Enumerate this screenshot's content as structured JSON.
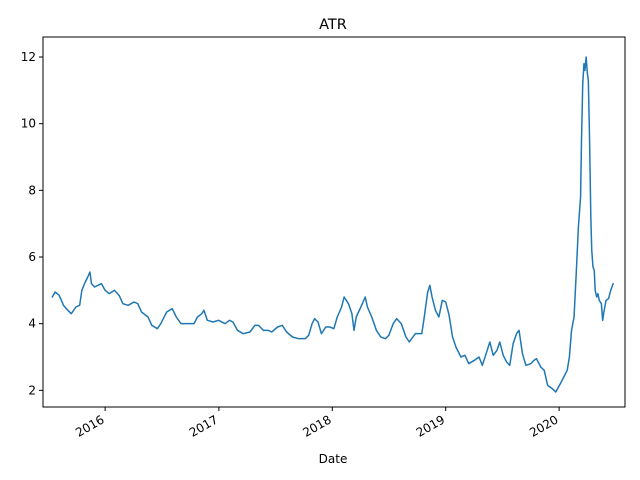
{
  "chart_data": {
    "type": "line",
    "title": "ATR",
    "xlabel": "Date",
    "ylabel": "",
    "x_start": "2015-07-15",
    "x_end": "2020-07-01",
    "xlim": [
      "2015-06-15",
      "2020-07-31"
    ],
    "ylim": [
      1.5,
      12.6
    ],
    "x_ticks": [
      {
        "date": "2016-01-01",
        "label": "2016"
      },
      {
        "date": "2017-01-01",
        "label": "2017"
      },
      {
        "date": "2018-01-01",
        "label": "2018"
      },
      {
        "date": "2019-01-01",
        "label": "2019"
      },
      {
        "date": "2020-01-01",
        "label": "2020"
      }
    ],
    "y_ticks": [
      2,
      4,
      6,
      8,
      10,
      12
    ],
    "y_tick_labels": [
      "2",
      "4",
      "6",
      "8",
      "10",
      "12"
    ],
    "grid": false,
    "series": [
      {
        "color": "#1f77b4",
        "points": [
          [
            "2015-07-15",
            4.8
          ],
          [
            "2015-07-24",
            4.95
          ],
          [
            "2015-08-06",
            4.85
          ],
          [
            "2015-08-20",
            4.55
          ],
          [
            "2015-09-03",
            4.4
          ],
          [
            "2015-09-14",
            4.3
          ],
          [
            "2015-09-29",
            4.5
          ],
          [
            "2015-10-11",
            4.55
          ],
          [
            "2015-10-18",
            5.0
          ],
          [
            "2015-10-29",
            5.25
          ],
          [
            "2015-11-06",
            5.4
          ],
          [
            "2015-11-13",
            5.55
          ],
          [
            "2015-11-18",
            5.2
          ],
          [
            "2015-11-28",
            5.1
          ],
          [
            "2015-12-09",
            5.15
          ],
          [
            "2015-12-20",
            5.2
          ],
          [
            "2016-01-01",
            5.0
          ],
          [
            "2016-01-14",
            4.9
          ],
          [
            "2016-01-31",
            5.0
          ],
          [
            "2016-02-15",
            4.85
          ],
          [
            "2016-02-27",
            4.6
          ],
          [
            "2016-03-15",
            4.55
          ],
          [
            "2016-04-03",
            4.65
          ],
          [
            "2016-04-15",
            4.6
          ],
          [
            "2016-04-27",
            4.35
          ],
          [
            "2016-05-18",
            4.2
          ],
          [
            "2016-05-30",
            3.95
          ],
          [
            "2016-06-17",
            3.85
          ],
          [
            "2016-06-28",
            4.0
          ],
          [
            "2016-07-17",
            4.35
          ],
          [
            "2016-08-04",
            4.45
          ],
          [
            "2016-08-17",
            4.2
          ],
          [
            "2016-09-01",
            4.0
          ],
          [
            "2016-09-25",
            4.0
          ],
          [
            "2016-10-13",
            4.0
          ],
          [
            "2016-10-24",
            4.2
          ],
          [
            "2016-11-07",
            4.3
          ],
          [
            "2016-11-14",
            4.4
          ],
          [
            "2016-11-25",
            4.1
          ],
          [
            "2016-12-13",
            4.05
          ],
          [
            "2016-12-31",
            4.1
          ],
          [
            "2017-01-21",
            4.0
          ],
          [
            "2017-02-04",
            4.1
          ],
          [
            "2017-02-15",
            4.05
          ],
          [
            "2017-03-02",
            3.8
          ],
          [
            "2017-03-20",
            3.7
          ],
          [
            "2017-04-11",
            3.75
          ],
          [
            "2017-04-27",
            3.95
          ],
          [
            "2017-05-09",
            3.95
          ],
          [
            "2017-05-24",
            3.8
          ],
          [
            "2017-06-09",
            3.8
          ],
          [
            "2017-06-20",
            3.75
          ],
          [
            "2017-07-09",
            3.9
          ],
          [
            "2017-07-24",
            3.95
          ],
          [
            "2017-08-07",
            3.75
          ],
          [
            "2017-08-26",
            3.6
          ],
          [
            "2017-09-14",
            3.55
          ],
          [
            "2017-10-06",
            3.55
          ],
          [
            "2017-10-17",
            3.65
          ],
          [
            "2017-10-28",
            4.0
          ],
          [
            "2017-11-05",
            4.15
          ],
          [
            "2017-11-16",
            4.05
          ],
          [
            "2017-11-27",
            3.7
          ],
          [
            "2017-12-11",
            3.9
          ],
          [
            "2017-12-24",
            3.9
          ],
          [
            "2018-01-06",
            3.85
          ],
          [
            "2018-01-17",
            4.2
          ],
          [
            "2018-01-31",
            4.5
          ],
          [
            "2018-02-08",
            4.8
          ],
          [
            "2018-02-22",
            4.6
          ],
          [
            "2018-03-05",
            4.3
          ],
          [
            "2018-03-12",
            3.8
          ],
          [
            "2018-03-19",
            4.2
          ],
          [
            "2018-04-03",
            4.5
          ],
          [
            "2018-04-17",
            4.8
          ],
          [
            "2018-04-24",
            4.5
          ],
          [
            "2018-05-08",
            4.2
          ],
          [
            "2018-05-23",
            3.8
          ],
          [
            "2018-06-06",
            3.6
          ],
          [
            "2018-06-21",
            3.55
          ],
          [
            "2018-07-02",
            3.65
          ],
          [
            "2018-07-16",
            4.0
          ],
          [
            "2018-07-27",
            4.15
          ],
          [
            "2018-08-11",
            4.0
          ],
          [
            "2018-08-26",
            3.6
          ],
          [
            "2018-09-06",
            3.45
          ],
          [
            "2018-09-25",
            3.7
          ],
          [
            "2018-10-16",
            3.7
          ],
          [
            "2018-10-24",
            4.2
          ],
          [
            "2018-11-04",
            4.95
          ],
          [
            "2018-11-11",
            5.15
          ],
          [
            "2018-11-18",
            4.8
          ],
          [
            "2018-11-29",
            4.4
          ],
          [
            "2018-12-10",
            4.2
          ],
          [
            "2018-12-21",
            4.7
          ],
          [
            "2019-01-01",
            4.65
          ],
          [
            "2019-01-12",
            4.25
          ],
          [
            "2019-01-23",
            3.6
          ],
          [
            "2019-02-03",
            3.3
          ],
          [
            "2019-02-19",
            3.0
          ],
          [
            "2019-03-04",
            3.05
          ],
          [
            "2019-03-16",
            2.8
          ],
          [
            "2019-04-03",
            2.9
          ],
          [
            "2019-04-18",
            3.0
          ],
          [
            "2019-04-29",
            2.75
          ],
          [
            "2019-05-11",
            3.1
          ],
          [
            "2019-05-23",
            3.45
          ],
          [
            "2019-06-03",
            3.05
          ],
          [
            "2019-06-15",
            3.2
          ],
          [
            "2019-06-24",
            3.45
          ],
          [
            "2019-07-05",
            3.05
          ],
          [
            "2019-07-16",
            2.85
          ],
          [
            "2019-07-26",
            2.75
          ],
          [
            "2019-08-06",
            3.4
          ],
          [
            "2019-08-17",
            3.7
          ],
          [
            "2019-08-25",
            3.8
          ],
          [
            "2019-09-05",
            3.1
          ],
          [
            "2019-09-16",
            2.75
          ],
          [
            "2019-10-02",
            2.8
          ],
          [
            "2019-10-12",
            2.9
          ],
          [
            "2019-10-20",
            2.95
          ],
          [
            "2019-11-03",
            2.7
          ],
          [
            "2019-11-14",
            2.6
          ],
          [
            "2019-11-25",
            2.15
          ],
          [
            "2019-12-10",
            2.05
          ],
          [
            "2019-12-21",
            1.95
          ],
          [
            "2020-01-05",
            2.2
          ],
          [
            "2020-01-16",
            2.4
          ],
          [
            "2020-01-27",
            2.6
          ],
          [
            "2020-02-03",
            3.0
          ],
          [
            "2020-02-10",
            3.8
          ],
          [
            "2020-02-18",
            4.2
          ],
          [
            "2020-02-25",
            5.5
          ],
          [
            "2020-03-03",
            6.9
          ],
          [
            "2020-03-10",
            7.8
          ],
          [
            "2020-03-13",
            9.5
          ],
          [
            "2020-03-17",
            11.2
          ],
          [
            "2020-03-21",
            11.8
          ],
          [
            "2020-03-24",
            11.6
          ],
          [
            "2020-03-28",
            12.0
          ],
          [
            "2020-04-01",
            11.5
          ],
          [
            "2020-04-04",
            11.3
          ],
          [
            "2020-04-08",
            9.5
          ],
          [
            "2020-04-12",
            7.2
          ],
          [
            "2020-04-15",
            6.2
          ],
          [
            "2020-04-19",
            5.7
          ],
          [
            "2020-04-23",
            5.6
          ],
          [
            "2020-04-26",
            5.0
          ],
          [
            "2020-05-01",
            4.8
          ],
          [
            "2020-05-05",
            4.9
          ],
          [
            "2020-05-09",
            4.7
          ],
          [
            "2020-05-16",
            4.6
          ],
          [
            "2020-05-20",
            4.1
          ],
          [
            "2020-05-24",
            4.35
          ],
          [
            "2020-05-31",
            4.7
          ],
          [
            "2020-06-08",
            4.75
          ],
          [
            "2020-06-15",
            5.0
          ],
          [
            "2020-06-23",
            5.2
          ]
        ]
      }
    ]
  }
}
